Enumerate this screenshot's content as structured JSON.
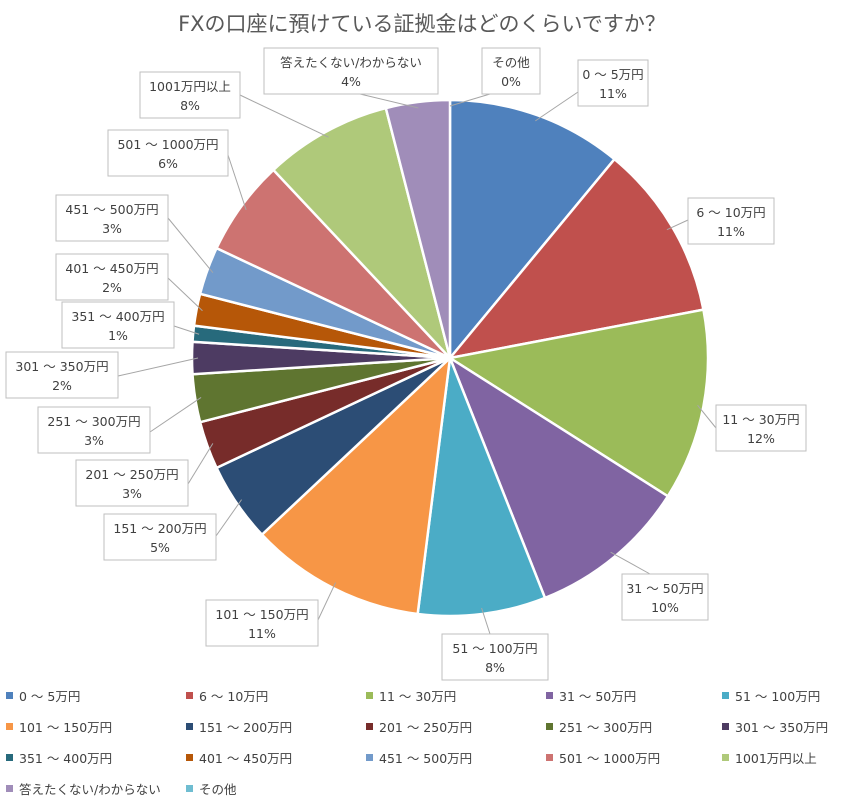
{
  "chart_data": {
    "type": "pie",
    "title": "FXの口座に預けている証拠金はどのくらいですか？",
    "legend_position": "bottom",
    "slices": [
      {
        "label": "0 ～ 5万円",
        "value": 11,
        "value_label": "11%",
        "color": "#4F81BD"
      },
      {
        "label": "6 ～ 10万円",
        "value": 11,
        "value_label": "11%",
        "color": "#C0504D"
      },
      {
        "label": "11 ～ 30万円",
        "value": 12,
        "value_label": "12%",
        "color": "#9BBB59"
      },
      {
        "label": "31 ～ 50万円",
        "value": 10,
        "value_label": "10%",
        "color": "#8064A2"
      },
      {
        "label": "51 ～ 100万円",
        "value": 8,
        "value_label": "8%",
        "color": "#4BACC6"
      },
      {
        "label": "101 ～ 150万円",
        "value": 11,
        "value_label": "11%",
        "color": "#F79646"
      },
      {
        "label": "151 ～ 200万円",
        "value": 5,
        "value_label": "5%",
        "color": "#2C4D75"
      },
      {
        "label": "201 ～ 250万円",
        "value": 3,
        "value_label": "3%",
        "color": "#772C2A"
      },
      {
        "label": "251 ～ 300万円",
        "value": 3,
        "value_label": "3%",
        "color": "#5F7530"
      },
      {
        "label": "301 ～ 350万円",
        "value": 2,
        "value_label": "2%",
        "color": "#4D3B62"
      },
      {
        "label": "351 ～ 400万円",
        "value": 1,
        "value_label": "1%",
        "color": "#276A7C"
      },
      {
        "label": "401 ～ 450万円",
        "value": 2,
        "value_label": "2%",
        "color": "#B65708"
      },
      {
        "label": "451 ～ 500万円",
        "value": 3,
        "value_label": "3%",
        "color": "#729ACA"
      },
      {
        "label": "501 ～ 1000万円",
        "value": 6,
        "value_label": "6%",
        "color": "#CD7371"
      },
      {
        "label": "1001万円以上",
        "value": 8,
        "value_label": "8%",
        "color": "#AFC97A"
      },
      {
        "label": "答えたくない/わからない",
        "value": 4,
        "value_label": "4%",
        "color": "#A08DB9"
      },
      {
        "label": "その他",
        "value": 0,
        "value_label": "0%",
        "color": "#6FBDD1"
      }
    ]
  }
}
